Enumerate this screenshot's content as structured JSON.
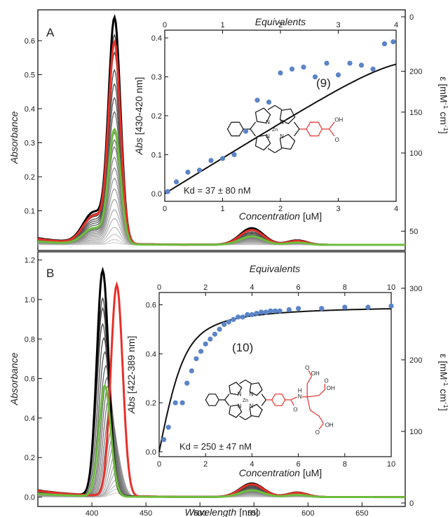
{
  "chart_data": [
    {
      "panel_label": "A",
      "type": "line",
      "xlabel": "Wavelength",
      "xunit": "[nm]",
      "ylabel": "Absorbance",
      "ylabel_right": "ε [mM",
      "ylabel_right_full": "ε [mM⁻¹ cm⁻¹]",
      "xlim": [
        350,
        690
      ],
      "ylim": [
        0,
        0.67
      ],
      "ylim_right": [
        0,
        0.67
      ],
      "yticks": [
        0.1,
        0.2,
        0.3,
        0.4,
        0.5,
        0.6
      ],
      "yticks_right": [
        {
          "label": "0",
          "v": 0.67
        },
        {
          "label": "50",
          "v": 0.04
        },
        {
          "label": "100",
          "v": 0.27
        },
        {
          "label": "150",
          "v": 0.39
        },
        {
          "label": "200",
          "v": 0.51
        }
      ],
      "spectra": {
        "peak_nm": 421,
        "peak_width_nm": 5.5,
        "shoulder_nm": 402,
        "shoulder_ratio": 0.14,
        "q_nm": 548,
        "q_ratio": 0.075,
        "gray_peaks": [
          0.006,
          0.015,
          0.03,
          0.05,
          0.075,
          0.1,
          0.13,
          0.16,
          0.19,
          0.22,
          0.25,
          0.28,
          0.3,
          0.32,
          0.38,
          0.42,
          0.46,
          0.5,
          0.55,
          0.6
        ],
        "highlight": [
          {
            "color": "#000000",
            "peak": 0.65
          },
          {
            "color": "#e8302a",
            "peak": 0.58
          },
          {
            "color": "#6dbd3e",
            "peak": 0.33
          }
        ]
      },
      "inset": {
        "xlabel": "Concentration",
        "xunit": "[uM]",
        "ylabel": "Abs",
        "yunit": "[430-420 nm]",
        "top_label": "Equivalents",
        "xlim": [
          0,
          4
        ],
        "ylim": [
          -0.02,
          0.42
        ],
        "xticks": [
          0,
          1,
          2,
          3,
          4
        ],
        "top_ticks": [
          0,
          1,
          2,
          3,
          4
        ],
        "yticks": [
          0.0,
          0.1,
          0.2,
          0.3,
          0.4
        ],
        "points_x": [
          0.05,
          0.2,
          0.4,
          0.6,
          0.8,
          1.0,
          1.2,
          1.4,
          1.6,
          1.8,
          2.0,
          2.2,
          2.4,
          2.6,
          2.8,
          3.0,
          3.2,
          3.4,
          3.6,
          3.8,
          3.95
        ],
        "points_y": [
          0.005,
          0.03,
          0.055,
          0.06,
          0.085,
          0.09,
          0.1,
          0.16,
          0.24,
          0.235,
          0.31,
          0.32,
          0.325,
          0.3,
          0.335,
          0.305,
          0.335,
          0.33,
          0.32,
          0.385,
          0.39
        ],
        "fit": {
          "model": "quadratic_binding",
          "kd": 0.037,
          "bmax": 0.364,
          "total": 3.95,
          "equiv_conc": 1.0
        },
        "kd_label": "Kd  = 37 ± 80 nM",
        "compound_label": "(9)",
        "molecule": {
          "metal": "Zn",
          "n_label": "N",
          "acid": "OH",
          "oxo": "O"
        }
      }
    },
    {
      "panel_label": "B",
      "type": "line",
      "xlabel": "Wavelength",
      "xunit": "[nm]",
      "ylabel": "Absorbance",
      "ylabel_right": "ε [mM",
      "ylabel_right_full": "ε [mM⁻¹ cm⁻¹]",
      "xlim": [
        350,
        690
      ],
      "xticks": [
        400,
        450,
        500,
        550,
        600,
        650
      ],
      "ylim": [
        -0.03,
        1.22
      ],
      "ylim_right": [
        0,
        345
      ],
      "yticks": [
        0.0,
        0.2,
        0.4,
        0.6,
        0.8,
        1.0,
        1.2
      ],
      "yticks_right": [
        {
          "label": "0",
          "v": 0
        },
        {
          "label": "100",
          "v": 100
        },
        {
          "label": "200",
          "v": 200
        },
        {
          "label": "300",
          "v": 300
        }
      ],
      "spectra": {
        "peak_width_nm": 5.5,
        "q_nm": 548,
        "q_ratio": 0.06,
        "gray_series": [
          {
            "peak_nm": 423,
            "peak": 0.02
          },
          {
            "peak_nm": 423,
            "peak": 0.04
          },
          {
            "peak_nm": 423,
            "peak": 0.06
          },
          {
            "peak_nm": 423,
            "peak": 0.09
          },
          {
            "peak_nm": 423,
            "peak": 0.13
          },
          {
            "peak_nm": 423,
            "peak": 0.18
          },
          {
            "peak_nm": 422,
            "peak": 0.22
          },
          {
            "peak_nm": 421,
            "peak": 0.27
          },
          {
            "peak_nm": 420,
            "peak": 0.31
          },
          {
            "peak_nm": 419,
            "peak": 0.35
          },
          {
            "peak_nm": 418,
            "peak": 0.4
          },
          {
            "peak_nm": 417,
            "peak": 0.44
          },
          {
            "peak_nm": 416,
            "peak": 0.5
          },
          {
            "peak_nm": 415,
            "peak": 0.56
          },
          {
            "peak_nm": 414,
            "peak": 0.6
          },
          {
            "peak_nm": 413,
            "peak": 0.66
          },
          {
            "peak_nm": 412,
            "peak": 0.73
          },
          {
            "peak_nm": 411,
            "peak": 0.8
          },
          {
            "peak_nm": 410,
            "peak": 0.87
          },
          {
            "peak_nm": 410,
            "peak": 0.95
          },
          {
            "peak_nm": 410,
            "peak": 1.0
          }
        ],
        "highlight": [
          {
            "color": "#000000",
            "peak_nm": 410,
            "peak": 1.14
          },
          {
            "color": "#e8302a",
            "peak_nm": 423,
            "peak": 1.07
          },
          {
            "color": "#6dbd3e",
            "peak_nm": 412,
            "peak": 0.56
          }
        ]
      },
      "inset": {
        "xlabel": "Concentration",
        "xunit": "[uM]",
        "ylabel": "Abs",
        "yunit": "[422-389 nm]",
        "top_label": "Equivalents",
        "xlim": [
          0,
          10
        ],
        "ylim": [
          -0.02,
          0.65
        ],
        "xticks": [
          0,
          2,
          4,
          6,
          8,
          10
        ],
        "top_ticks": [
          0,
          2,
          4,
          6,
          8,
          10
        ],
        "yticks": [
          0.0,
          0.2,
          0.4,
          0.6
        ],
        "points_x": [
          0.2,
          0.4,
          0.7,
          1.0,
          1.2,
          1.4,
          1.6,
          1.8,
          2.0,
          2.2,
          2.4,
          2.6,
          2.8,
          3.0,
          3.2,
          3.4,
          3.6,
          3.8,
          4.0,
          4.2,
          4.4,
          4.6,
          4.8,
          5.0,
          5.2,
          5.6,
          6.0,
          7.0,
          8.0,
          9.0,
          10.0
        ],
        "points_y": [
          0.05,
          0.1,
          0.2,
          0.2,
          0.28,
          0.33,
          0.38,
          0.41,
          0.44,
          0.46,
          0.48,
          0.5,
          0.52,
          0.53,
          0.54,
          0.55,
          0.55,
          0.56,
          0.56,
          0.565,
          0.57,
          0.57,
          0.575,
          0.575,
          0.575,
          0.58,
          0.585,
          0.585,
          0.59,
          0.59,
          0.595
        ],
        "fit": {
          "model": "quadratic_binding",
          "kd": 0.25,
          "bmax": 0.6,
          "total": 1.0,
          "equiv_conc": 1.0
        },
        "kd_label": "Kd  = 250 ± 47 nM",
        "compound_label": "(10)",
        "molecule": {
          "metal": "Zn",
          "n_label": "N",
          "nh_label": "N",
          "h_label": "H",
          "acid": "OH",
          "oxo": "O"
        }
      }
    }
  ],
  "colors": {
    "gray_light": "#d8d8d8",
    "gray_dark": "#3a3a3a",
    "points": "#5b84c8",
    "red": "#e8302a",
    "green": "#6dbd3e"
  }
}
